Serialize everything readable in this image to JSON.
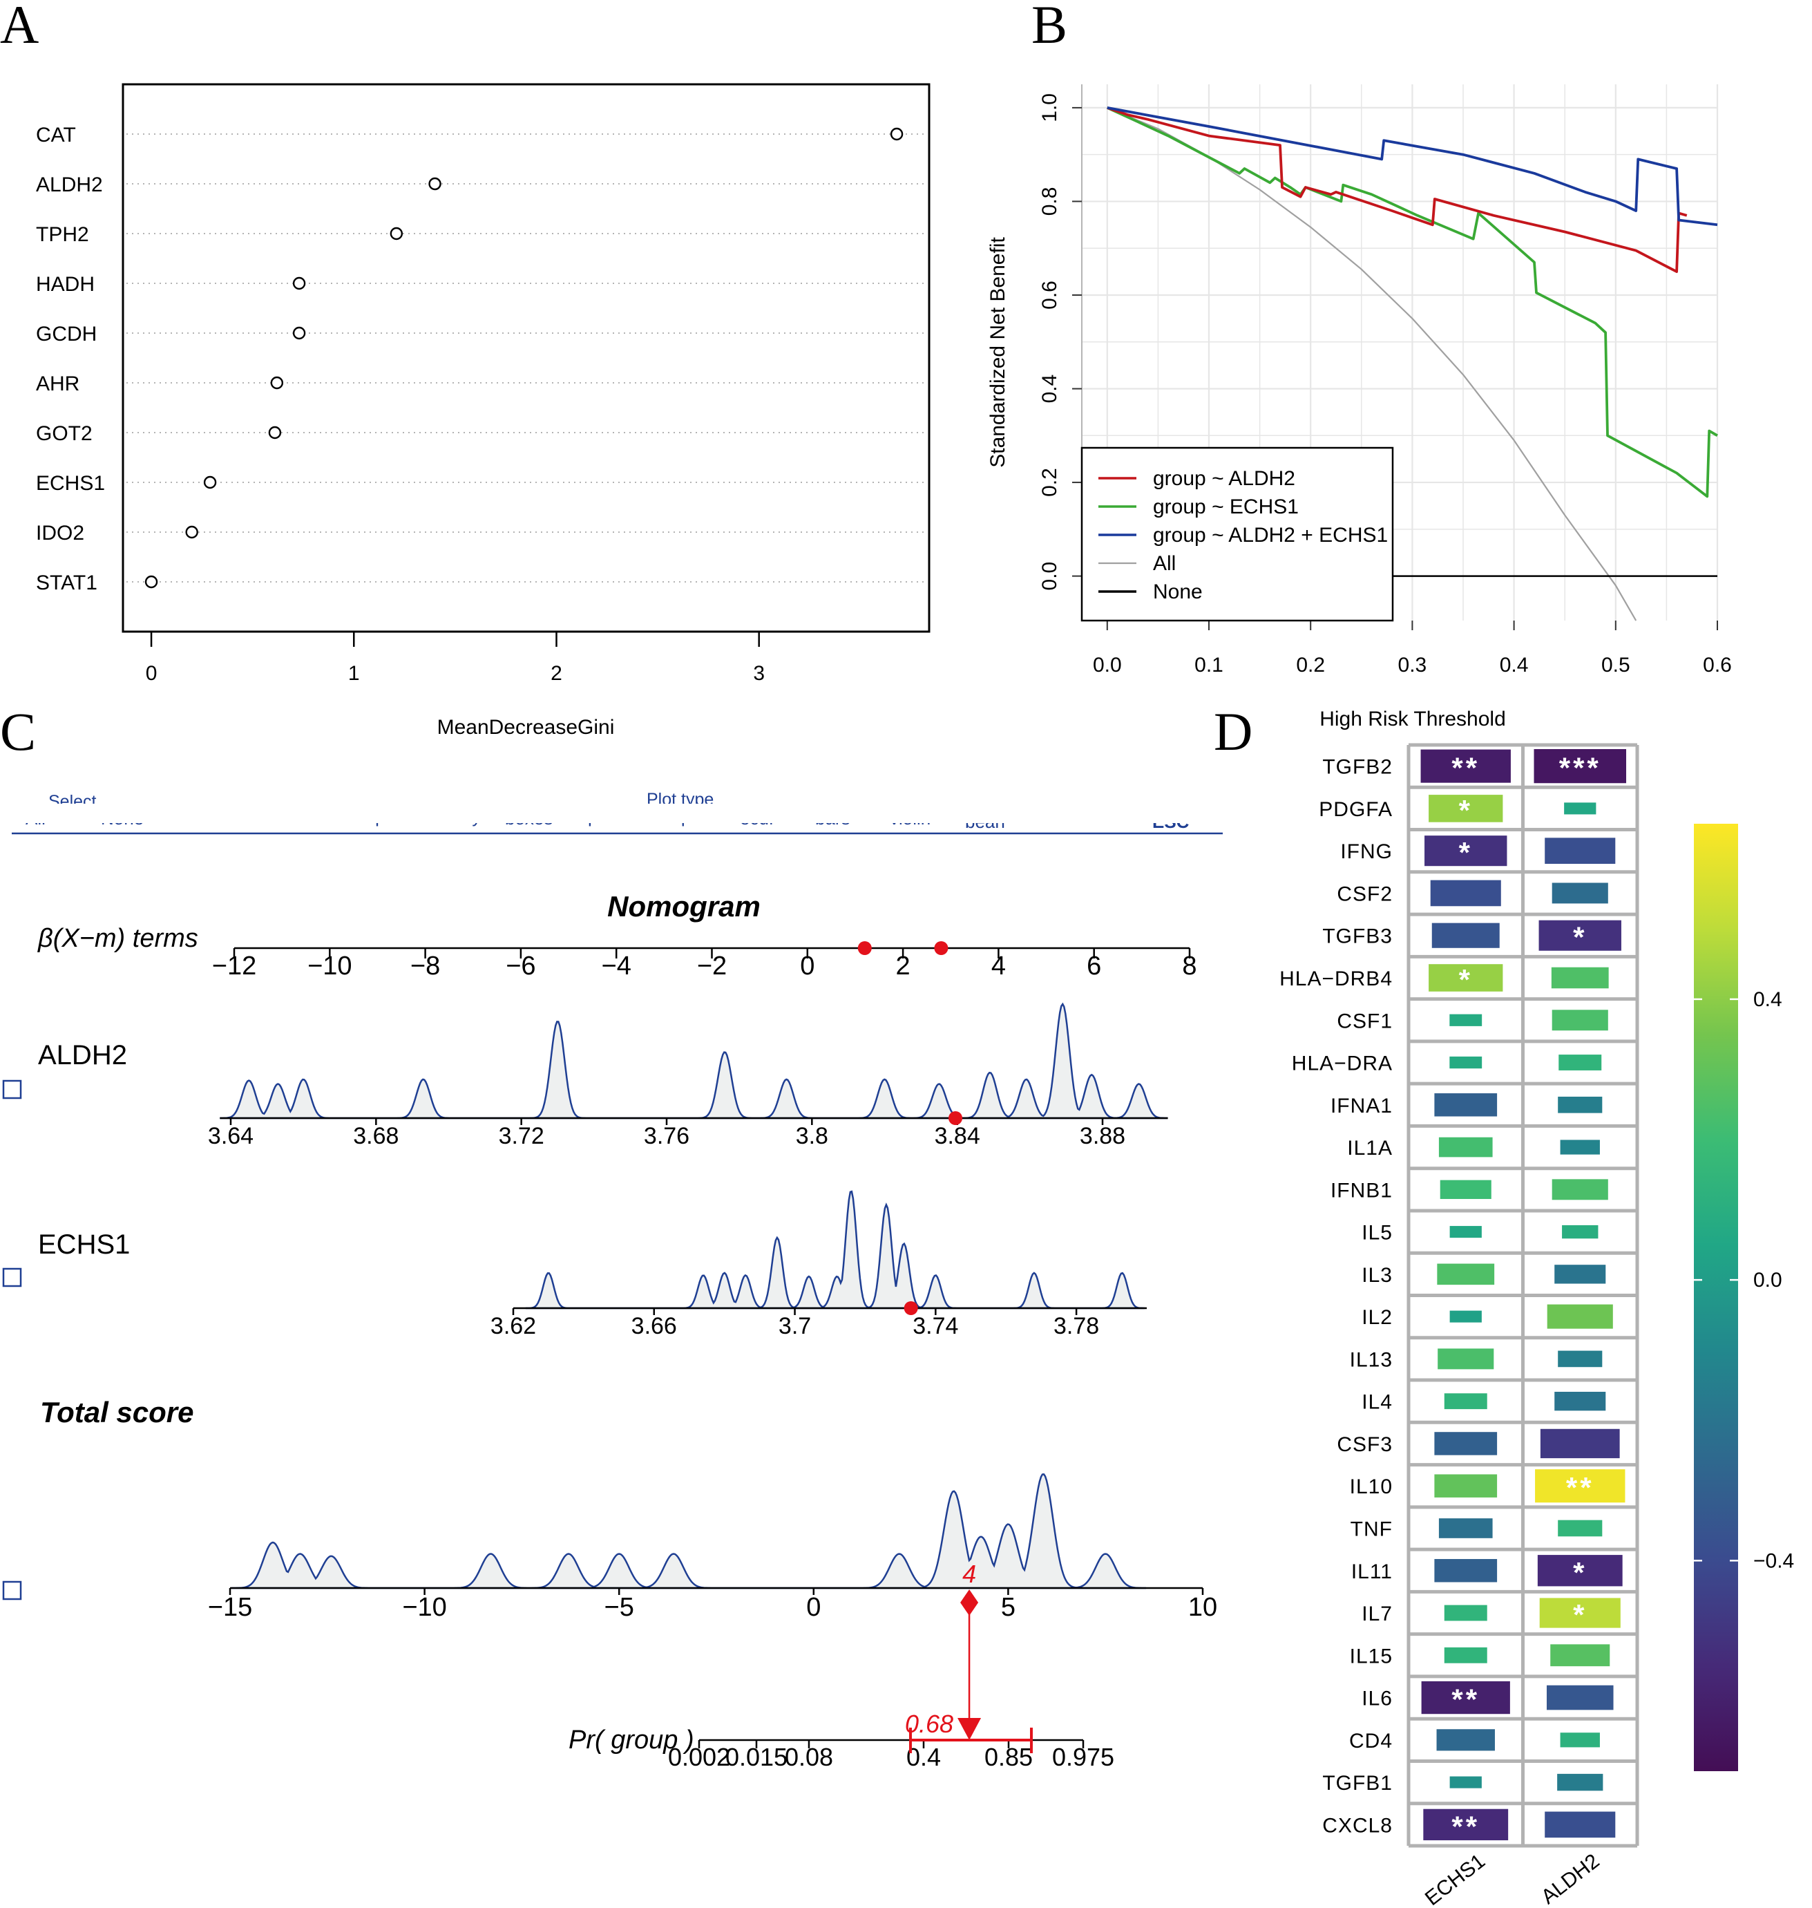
{
  "panels": {
    "A": "A",
    "B": "B",
    "C": "C",
    "D": "D"
  },
  "colors": {
    "aldh2": "#c4161c",
    "echs1": "#3aaa35",
    "both": "#1a3a9c",
    "all": "#a0a0a0",
    "none": "#000000",
    "red": "#e3121b",
    "nomo": "#1f3f93",
    "fill": "#eef0f0"
  },
  "chart_data": [
    {
      "id": "A",
      "type": "scatter",
      "title": "",
      "xlabel": "MeanDecreaseGini",
      "ylabel": "",
      "xlim": [
        -0.14,
        3.84
      ],
      "xticks": [
        0,
        1,
        2,
        3
      ],
      "categories": [
        "CAT",
        "ALDH2",
        "TPH2",
        "HADH",
        "GCDH",
        "AHR",
        "GOT2",
        "ECHS1",
        "IDO2",
        "STAT1"
      ],
      "values": [
        3.68,
        1.4,
        1.21,
        0.73,
        0.73,
        0.62,
        0.61,
        0.29,
        0.2,
        0.0
      ]
    },
    {
      "id": "B",
      "type": "line",
      "title": "",
      "xlabel": "",
      "ylabel": "Standardized Net Benefit",
      "xlim": [
        -0.025,
        0.6
      ],
      "ylim": [
        -0.095,
        1.05
      ],
      "xticks": [
        "0.0",
        "0.1",
        "0.2",
        "0.3",
        "0.4",
        "0.5",
        "0.6"
      ],
      "yticks": [
        "0.0",
        "0.2",
        "0.4",
        "0.6",
        "0.8",
        "1.0"
      ],
      "grid": true,
      "legend_position": "bottom-left",
      "series": [
        {
          "name": "group ~ ALDH2",
          "color_key": "aldh2",
          "x": [
            0,
            0.02,
            0.04,
            0.1,
            0.17,
            0.172,
            0.19,
            0.195,
            0.22,
            0.225,
            0.28,
            0.3,
            0.32,
            0.322,
            0.38,
            0.45,
            0.52,
            0.56,
            0.562,
            0.57
          ],
          "y": [
            1.0,
            0.985,
            0.975,
            0.94,
            0.92,
            0.83,
            0.81,
            0.83,
            0.815,
            0.82,
            0.78,
            0.765,
            0.75,
            0.805,
            0.77,
            0.735,
            0.695,
            0.65,
            0.775,
            0.77
          ]
        },
        {
          "name": "group ~ ECHS1",
          "color_key": "echs1",
          "x": [
            0,
            0.03,
            0.06,
            0.13,
            0.135,
            0.16,
            0.165,
            0.18,
            0.19,
            0.195,
            0.23,
            0.232,
            0.26,
            0.305,
            0.36,
            0.365,
            0.42,
            0.422,
            0.48,
            0.49,
            0.492,
            0.56,
            0.59,
            0.592,
            0.6
          ],
          "y": [
            1.0,
            0.97,
            0.94,
            0.86,
            0.87,
            0.84,
            0.85,
            0.83,
            0.815,
            0.83,
            0.8,
            0.835,
            0.815,
            0.77,
            0.72,
            0.775,
            0.67,
            0.605,
            0.54,
            0.52,
            0.3,
            0.22,
            0.17,
            0.31,
            0.3
          ]
        },
        {
          "name": "group ~ ALDH2 + ECHS1",
          "color_key": "both",
          "x": [
            0,
            0.1,
            0.27,
            0.272,
            0.35,
            0.42,
            0.47,
            0.5,
            0.52,
            0.522,
            0.56,
            0.562,
            0.6
          ],
          "y": [
            1.0,
            0.96,
            0.89,
            0.93,
            0.9,
            0.86,
            0.82,
            0.8,
            0.78,
            0.89,
            0.87,
            0.76,
            0.75
          ]
        },
        {
          "name": "All",
          "color_key": "all",
          "x": [
            0,
            0.05,
            0.1,
            0.15,
            0.2,
            0.25,
            0.3,
            0.35,
            0.4,
            0.45,
            0.5,
            0.52
          ],
          "y": [
            1.0,
            0.955,
            0.895,
            0.825,
            0.745,
            0.655,
            0.55,
            0.43,
            0.29,
            0.13,
            -0.02,
            -0.095
          ]
        },
        {
          "name": "None",
          "color_key": "none",
          "x": [
            0,
            0.6
          ],
          "y": [
            0,
            0
          ]
        }
      ]
    },
    {
      "id": "C",
      "type": "other",
      "title": "Nomogram",
      "terms_label": "β(X−m) terms",
      "terms_axis": {
        "min": -12,
        "max": 8,
        "ticks": [
          "−12",
          "−10",
          "−8",
          "−6",
          "−4",
          "−2",
          "0",
          "2",
          "4",
          "6",
          "8"
        ],
        "points": [
          1.2,
          2.8
        ]
      },
      "variables": [
        {
          "name": "ALDH2",
          "min": 3.64,
          "max": 3.88,
          "ticks": [
            "3.64",
            "3.68",
            "3.72",
            "3.76",
            "3.8",
            "3.84",
            "3.88"
          ],
          "value": 3.8395,
          "density_peaks": [
            [
              3.645,
              0.33
            ],
            [
              3.653,
              0.3
            ],
            [
              3.66,
              0.34
            ],
            [
              3.693,
              0.34
            ],
            [
              3.73,
              0.85
            ],
            [
              3.776,
              0.58
            ],
            [
              3.793,
              0.34
            ],
            [
              3.82,
              0.34
            ],
            [
              3.835,
              0.3
            ],
            [
              3.849,
              0.4
            ],
            [
              3.859,
              0.34
            ],
            [
              3.869,
              1.0
            ],
            [
              3.877,
              0.38
            ],
            [
              3.89,
              0.3
            ]
          ]
        },
        {
          "name": "ECHS1",
          "min": 3.62,
          "max": 3.8,
          "ticks": [
            "3.62",
            "3.66",
            "3.7",
            "3.74",
            "3.78"
          ],
          "value": 3.733,
          "density_peaks": [
            [
              3.63,
              0.3
            ],
            [
              3.674,
              0.28
            ],
            [
              3.68,
              0.3
            ],
            [
              3.686,
              0.28
            ],
            [
              3.695,
              0.6
            ],
            [
              3.704,
              0.27
            ],
            [
              3.712,
              0.27
            ],
            [
              3.716,
              1.0
            ],
            [
              3.726,
              0.88
            ],
            [
              3.731,
              0.55
            ],
            [
              3.74,
              0.28
            ],
            [
              3.768,
              0.3
            ],
            [
              3.793,
              0.3
            ]
          ]
        }
      ],
      "total": {
        "label": "Total score",
        "min": -15,
        "max": 10,
        "ticks": [
          "−15",
          "−10",
          "−5",
          "0",
          "5",
          "10"
        ],
        "value": 4,
        "value_label": "4",
        "density_peaks": [
          [
            -13.9,
            0.4
          ],
          [
            -13.2,
            0.3
          ],
          [
            -12.4,
            0.28
          ],
          [
            -8.3,
            0.3
          ],
          [
            -6.3,
            0.3
          ],
          [
            -5.0,
            0.3
          ],
          [
            -3.6,
            0.3
          ],
          [
            2.2,
            0.3
          ],
          [
            3.6,
            0.85
          ],
          [
            4.3,
            0.45
          ],
          [
            5.0,
            0.56
          ],
          [
            5.9,
            1.0
          ],
          [
            7.5,
            0.3
          ]
        ]
      },
      "probability": {
        "label": "Pr( group )",
        "ticks": [
          "0.002",
          "0.015",
          "0.08",
          "0.4",
          "0.85",
          "0.975"
        ],
        "value_label": "0.68"
      },
      "toolbar": {
        "select_label": "Select",
        "all_label": "All",
        "none_label": "None",
        "plot_type_label": "Plot type",
        "items": [
          "no plot",
          "density",
          "boxes",
          "spikes",
          "boxplot",
          "ecdf",
          "bars",
          "violin",
          "bean"
        ],
        "esc_label": "ESC"
      }
    },
    {
      "id": "D",
      "type": "heatmap",
      "title": "High Risk Threshold",
      "columns": [
        "ECHS1",
        "ALDH2"
      ],
      "rows": [
        "TGFB2",
        "PDGFA",
        "IFNG",
        "CSF2",
        "TGFB3",
        "HLA−DRB4",
        "CSF1",
        "HLA−DRA",
        "IFNA1",
        "IL1A",
        "IFNB1",
        "IL5",
        "IL3",
        "IL2",
        "IL13",
        "IL4",
        "CSF3",
        "IL10",
        "TNF",
        "IL11",
        "IL7",
        "IL15",
        "IL6",
        "CD4",
        "TGFB1",
        "CXCL8"
      ],
      "values": [
        [
          -0.62,
          -0.65
        ],
        [
          0.42,
          0.06
        ],
        [
          -0.52,
          -0.38
        ],
        [
          -0.38,
          -0.24
        ],
        [
          -0.35,
          -0.52
        ],
        [
          0.42,
          0.25
        ],
        [
          0.08,
          0.24
        ],
        [
          0.08,
          0.14
        ],
        [
          -0.3,
          -0.15
        ],
        [
          0.22,
          -0.12
        ],
        [
          0.2,
          0.24
        ],
        [
          0.06,
          0.1
        ],
        [
          0.25,
          -0.2
        ],
        [
          0.02,
          0.33
        ],
        [
          0.24,
          -0.15
        ],
        [
          0.14,
          -0.2
        ],
        [
          -0.3,
          -0.48
        ],
        [
          0.3,
          0.62
        ],
        [
          -0.22,
          0.15
        ],
        [
          -0.3,
          -0.55
        ],
        [
          0.14,
          0.5
        ],
        [
          0.14,
          0.27
        ],
        [
          -0.6,
          -0.34
        ],
        [
          -0.26,
          0.12
        ],
        [
          -0.05,
          -0.16
        ],
        [
          -0.55,
          -0.38
        ]
      ],
      "stars": [
        [
          "**",
          "***"
        ],
        [
          "*",
          ""
        ],
        [
          "*",
          ""
        ],
        [
          "",
          ""
        ],
        [
          "",
          "*"
        ],
        [
          "*",
          ""
        ],
        [
          "",
          ""
        ],
        [
          "",
          ""
        ],
        [
          "",
          ""
        ],
        [
          "",
          ""
        ],
        [
          "",
          ""
        ],
        [
          "",
          ""
        ],
        [
          "",
          ""
        ],
        [
          "",
          ""
        ],
        [
          "",
          ""
        ],
        [
          "",
          ""
        ],
        [
          "",
          ""
        ],
        [
          "",
          "**"
        ],
        [
          "",
          ""
        ],
        [
          "",
          "*"
        ],
        [
          "",
          "*"
        ],
        [
          "",
          ""
        ],
        [
          "**",
          ""
        ],
        [
          "",
          ""
        ],
        [
          "",
          ""
        ],
        [
          "**",
          ""
        ]
      ],
      "colorbar": {
        "min": -0.7,
        "max": 0.65,
        "ticks": [
          "0.4",
          "0.0",
          "−0.4"
        ],
        "tick_values": [
          0.4,
          0.0,
          -0.4
        ]
      }
    }
  ]
}
